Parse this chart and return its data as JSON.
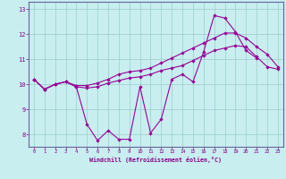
{
  "xlabel": "Windchill (Refroidissement éolien,°C)",
  "bg_color": "#c8eef0",
  "line_color": "#990099",
  "grid_color": "#99cccc",
  "axis_color": "#666699",
  "xlabel_color": "#880088",
  "tick_label_color": "#880088",
  "x_ticks": [
    0,
    1,
    2,
    3,
    4,
    5,
    6,
    7,
    8,
    9,
    10,
    11,
    12,
    13,
    14,
    15,
    16,
    17,
    18,
    19,
    20,
    21,
    22,
    23
  ],
  "y_ticks": [
    8,
    9,
    10,
    11,
    12,
    13
  ],
  "ylim": [
    7.5,
    13.3
  ],
  "xlim": [
    -0.5,
    23.5
  ],
  "series": [
    [
      10.2,
      9.8,
      10.0,
      10.1,
      9.9,
      8.4,
      7.75,
      8.15,
      7.8,
      7.8,
      9.9,
      8.05,
      8.6,
      10.2,
      10.4,
      10.1,
      11.3,
      12.75,
      12.65,
      12.1,
      11.35,
      11.05,
      null,
      null
    ],
    [
      10.2,
      9.8,
      10.0,
      10.1,
      9.9,
      9.85,
      9.9,
      10.05,
      10.15,
      10.25,
      10.3,
      10.4,
      10.55,
      10.65,
      10.75,
      10.95,
      11.15,
      11.35,
      11.45,
      11.55,
      11.5,
      11.1,
      10.7,
      10.6
    ],
    [
      10.2,
      9.8,
      10.0,
      10.1,
      9.95,
      9.95,
      10.05,
      10.2,
      10.4,
      10.5,
      10.55,
      10.65,
      10.85,
      11.05,
      11.25,
      11.45,
      11.65,
      11.85,
      12.05,
      12.05,
      11.85,
      11.5,
      11.2,
      10.7
    ]
  ]
}
